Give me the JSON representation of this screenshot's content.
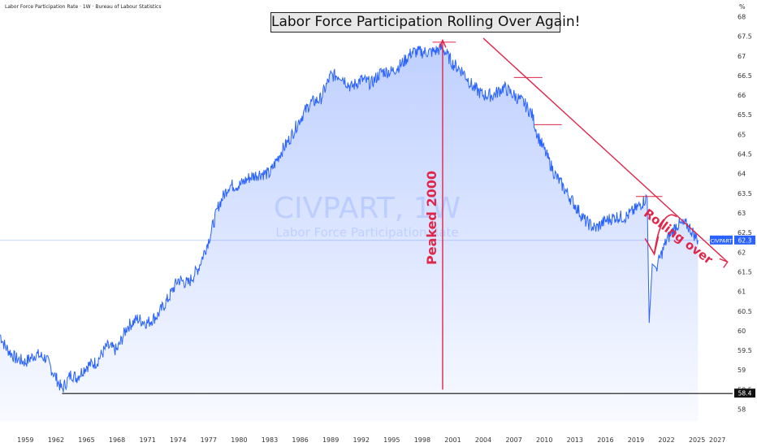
{
  "header": {
    "text": "Labor Force Participation Rate · 1W · Bureau of Labour Statistics"
  },
  "chart_data": {
    "type": "line",
    "title": "Labor Force Participation Rolling Over Again!",
    "watermark": {
      "symbol": "CIVPART, 1W",
      "name": "Labor Force Participation Rate"
    },
    "y_unit": "%",
    "ylim": [
      57.7,
      68.3
    ],
    "xlim": [
      1956.5,
      2028.5
    ],
    "x_ticks": [
      "1959",
      "1962",
      "1965",
      "1968",
      "1971",
      "1974",
      "1977",
      "1980",
      "1983",
      "1986",
      "1989",
      "1992",
      "1995",
      "1998",
      "2001",
      "2004",
      "2007",
      "2010",
      "2013",
      "2016",
      "2019",
      "2022",
      "2025",
      "2027"
    ],
    "y_ticks": [
      "58",
      "58.5",
      "59",
      "59.5",
      "60",
      "60.5",
      "61",
      "61.5",
      "62",
      "62.5",
      "63",
      "63.5",
      "64",
      "64.5",
      "65",
      "65.5",
      "66",
      "66.5",
      "67",
      "67.5",
      "68"
    ],
    "series": [
      {
        "name": "CIVPART",
        "color": "#2962ff",
        "x": [
          1956.5,
          1957,
          1958,
          1959,
          1960,
          1961,
          1962,
          1962.6,
          1963.5,
          1964,
          1965,
          1966,
          1967,
          1968,
          1969,
          1970,
          1971,
          1972,
          1973,
          1974,
          1975,
          1976,
          1977,
          1978,
          1979,
          1980,
          1981,
          1982,
          1983,
          1984,
          1985,
          1986,
          1987,
          1988,
          1989,
          1990,
          1991,
          1992,
          1993,
          1994,
          1995,
          1996,
          1997,
          1998,
          1999,
          2000,
          2001,
          2002,
          2003,
          2004,
          2005,
          2006,
          2007,
          2008,
          2008.8,
          2009.3,
          2010,
          2011,
          2012,
          2013,
          2014,
          2015,
          2016,
          2017,
          2018,
          2019,
          2020.1,
          2020.3,
          2020.6,
          2021,
          2022,
          2023,
          2024,
          2024.6,
          2025.1
        ],
        "values": [
          59.9,
          59.6,
          59.3,
          59.2,
          59.4,
          59.3,
          58.8,
          58.5,
          58.9,
          58.8,
          59.1,
          59.2,
          59.6,
          59.5,
          60.1,
          60.3,
          60.2,
          60.4,
          60.8,
          61.3,
          61.2,
          61.6,
          62.3,
          63.2,
          63.7,
          63.7,
          63.9,
          64.0,
          64.0,
          64.5,
          64.9,
          65.4,
          65.8,
          65.9,
          66.5,
          66.5,
          66.2,
          66.4,
          66.3,
          66.6,
          66.6,
          66.8,
          67.1,
          67.1,
          67.1,
          67.2,
          66.8,
          66.6,
          66.2,
          66.0,
          66.0,
          66.2,
          66.0,
          65.8,
          65.5,
          65.0,
          64.6,
          64.0,
          63.6,
          63.2,
          62.8,
          62.6,
          62.8,
          62.9,
          62.9,
          63.1,
          63.4,
          60.2,
          61.7,
          61.6,
          62.3,
          62.7,
          62.7,
          62.5,
          62.3
        ]
      }
    ],
    "last_value": {
      "label": "CIVPART",
      "value": "62.3"
    },
    "support_level": {
      "value": 58.4,
      "label": "58.4"
    },
    "annotations": [
      {
        "text": "Peaked 2000",
        "x": 2000,
        "y_from": 58.5,
        "y_to": 67.4,
        "color": "#e0264a"
      },
      {
        "text": "Rolling over",
        "color": "#e0264a"
      }
    ],
    "peak_markers": [
      {
        "x_from": 1999.0,
        "x_to": 2001.3,
        "y": 67.35
      },
      {
        "x_from": 2007.0,
        "x_to": 2009.8,
        "y": 66.45
      },
      {
        "x_from": 2009.0,
        "x_to": 2011.7,
        "y": 65.25
      },
      {
        "x_from": 2019.0,
        "x_to": 2021.6,
        "y": 63.42
      }
    ],
    "trendline": {
      "x_from": 2004.0,
      "y_from": 67.45,
      "x_to": 2028.0,
      "y_to": 61.75
    },
    "grid": false,
    "legend": "none"
  }
}
